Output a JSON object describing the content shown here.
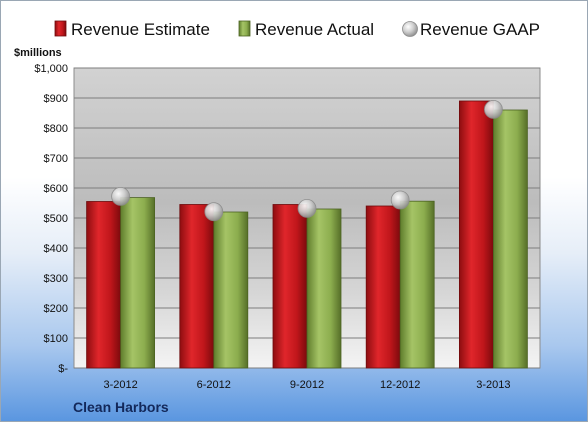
{
  "chart_data": {
    "type": "bar",
    "categories": [
      "3-2012",
      "6-2012",
      "9-2012",
      "12-2012",
      "3-2013"
    ],
    "series": [
      {
        "name": "Revenue Estimate",
        "values": [
          555,
          545,
          545,
          540,
          890
        ],
        "color": "#c0161b"
      },
      {
        "name": "Revenue Actual",
        "values": [
          568,
          520,
          530,
          556,
          860
        ],
        "color": "#8cad4e"
      },
      {
        "name": "Revenue GAAP",
        "values": [
          572,
          521,
          532,
          560,
          862
        ],
        "color": "#c8c8c8"
      }
    ],
    "y_unit_label": "$millions",
    "ylim": [
      0,
      1000
    ],
    "y_ticks": [
      {
        "value": 0,
        "label": "$-"
      },
      {
        "value": 100,
        "label": "$100"
      },
      {
        "value": 200,
        "label": "$200"
      },
      {
        "value": 300,
        "label": "$300"
      },
      {
        "value": 400,
        "label": "$400"
      },
      {
        "value": 500,
        "label": "$500"
      },
      {
        "value": 600,
        "label": "$600"
      },
      {
        "value": 700,
        "label": "$700"
      },
      {
        "value": 800,
        "label": "$800"
      },
      {
        "value": 900,
        "label": "$900"
      },
      {
        "value": 1000,
        "label": "$1,000"
      }
    ],
    "grid": true,
    "legend_position": "top",
    "company_label": "Clean Harbors"
  }
}
